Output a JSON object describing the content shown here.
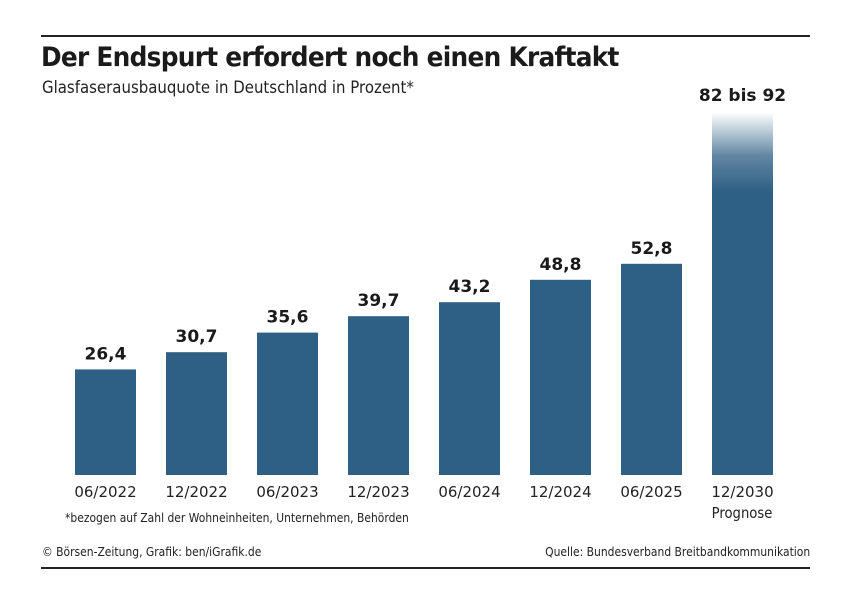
{
  "chart_data": {
    "type": "bar",
    "title": "Der Endspurt erfordert noch einen Kraftakt",
    "subtitle": "Glasfaserausbauquote in Deutschland in Prozent*",
    "xlabel": "",
    "ylabel": "",
    "ylim": [
      0,
      100
    ],
    "grid": false,
    "categories": [
      "06/2022",
      "12/2022",
      "06/2023",
      "12/2023",
      "06/2024",
      "12/2024",
      "06/2025",
      "12/2030"
    ],
    "values": [
      26.4,
      30.7,
      35.6,
      39.7,
      43.2,
      48.8,
      52.8,
      92
    ],
    "data_labels": [
      "26,4",
      "30,7",
      "35,6",
      "39,7",
      "43,2",
      "48,8",
      "52,8",
      "82 bis 92"
    ],
    "forecast": {
      "category": "12/2030",
      "range": [
        82,
        92
      ],
      "note": "Prognose"
    },
    "bar_color": "#2e5f84",
    "footnote": "*bezogen auf Zahl der Wohneinheiten, Unternehmen, Behörden",
    "credit": "© Börsen-Zeitung, Grafik: ben/iGrafik.de",
    "source": "Quelle: Bundesverband Breitbandkommunikation"
  }
}
